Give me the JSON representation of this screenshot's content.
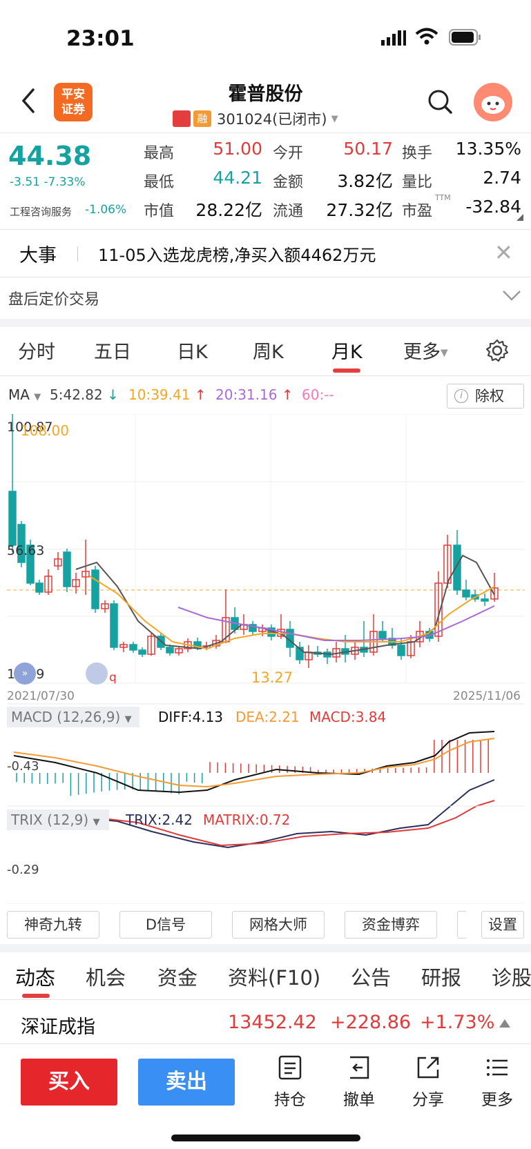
{
  "status": {
    "time": "23:01"
  },
  "header": {
    "logo_text": "平安\n证券",
    "stock_name": "霍普股份",
    "tag1": "注",
    "tag2": "融",
    "code_status": "301024(已闭市)"
  },
  "quote": {
    "price": "44.38",
    "change": "-3.51  -7.33%",
    "sector": "工程咨询服务",
    "sector_change": "-1.06%",
    "stats": [
      {
        "label": "最高",
        "value": "51.00",
        "color": "red"
      },
      {
        "label": "今开",
        "value": "50.17",
        "color": "red"
      },
      {
        "label": "换手",
        "value": "13.35%",
        "color": "dark"
      },
      {
        "label": "最低",
        "value": "44.21",
        "color": "green"
      },
      {
        "label": "金额",
        "value": "3.82亿",
        "color": "dark"
      },
      {
        "label": "量比",
        "value": "2.74",
        "color": "dark"
      },
      {
        "label": "市值",
        "value": "28.22亿",
        "color": "dark"
      },
      {
        "label": "流通",
        "value": "27.32亿",
        "color": "dark"
      },
      {
        "label": "市盈",
        "value": "-32.84",
        "color": "dark"
      }
    ],
    "pe_sup": "TTM"
  },
  "event": {
    "title": "大事",
    "text": "11-05入选龙虎榜,净买入额4462万元"
  },
  "after_hours": {
    "label": "盘后定价交易"
  },
  "tabs": [
    "分时",
    "五日",
    "日K",
    "周K",
    "月K",
    "更多"
  ],
  "ma": {
    "label": "MA",
    "ma5": "5:42.82",
    "ma10": "10:39.41",
    "ma20": "20:31.16",
    "ma60": "60:--",
    "chuquan": "除权"
  },
  "kline": {
    "high_label": "100.87",
    "high_marker": "108.00",
    "mid_label": "56.63",
    "low_label": "12.39",
    "low_marker": "13.27",
    "start_date": "2021/07/30",
    "end_date": "2025/11/06",
    "q_marker": "q"
  },
  "macd": {
    "head": "MACD (12,26,9)",
    "diff": "DIFF:4.13",
    "dea": "DEA:2.21",
    "macd": "MACD:3.84",
    "axis": "-0.43"
  },
  "trix": {
    "head": "TRIX (12,9)",
    "trix": "TRIX:2.42",
    "matrix": "MATRIX:0.72",
    "axis": "-0.29"
  },
  "tools": [
    "神奇九转",
    "D信号",
    "网格大师",
    "资金博弈",
    "设置"
  ],
  "feature_tabs": [
    "动态",
    "机会",
    "资金",
    "资料(F10)",
    "公告",
    "研报",
    "诊股"
  ],
  "index": {
    "name": "深证成指",
    "value": "13452.42",
    "change": "+228.86",
    "pct": "+1.73%"
  },
  "bottom": {
    "buy": "买入",
    "sell": "卖出",
    "hold": "持仓",
    "cancel": "撤单",
    "share": "分享",
    "more": "更多"
  },
  "colors": {
    "up": "#e23a3a",
    "down": "#17a2a2",
    "accent": "#e43e3e",
    "ma5": "#555555",
    "ma10": "#f5a623",
    "ma20": "#a86ad8",
    "ma60": "#f07ab8"
  }
}
